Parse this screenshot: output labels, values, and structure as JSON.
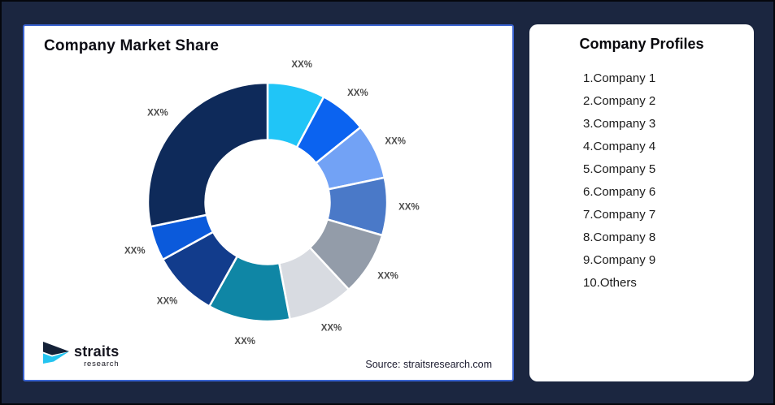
{
  "market_share_card": {
    "title": "Company Market Share",
    "source": "Source: straitsresearch.com",
    "logo": {
      "name": "straits",
      "sub": "research"
    }
  },
  "profiles_card": {
    "title": "Company Profiles",
    "items": [
      "1.Company 1",
      "2.Company 2",
      "3.Company 3",
      "4.Company 4",
      "5.Company 5",
      "6.Company 6",
      "7.Company 7",
      "8.Company 8",
      "9.Company 9",
      "10.Others"
    ]
  },
  "chart_data": {
    "type": "pie",
    "donut": true,
    "title": "Company Market Share",
    "legend_position": "none",
    "start_angle_deg": 0,
    "direction": "clockwise",
    "inner_radius_ratio": 0.52,
    "label_color": "#4D4D4D",
    "gap_stroke_color": "#FFFFFF",
    "segments": [
      {
        "label": "XX%",
        "value": 7.8,
        "color": "#20C5F7"
      },
      {
        "label": "XX%",
        "value": 6.4,
        "color": "#0B63F0"
      },
      {
        "label": "XX%",
        "value": 7.5,
        "color": "#72A2F5"
      },
      {
        "label": "XX%",
        "value": 7.8,
        "color": "#4A79C8"
      },
      {
        "label": "XX%",
        "value": 8.6,
        "color": "#939CA9"
      },
      {
        "label": "XX%",
        "value": 8.9,
        "color": "#D8DBE1"
      },
      {
        "label": "XX%",
        "value": 11.1,
        "color": "#0F86A5"
      },
      {
        "label": "XX%",
        "value": 8.9,
        "color": "#123C8C"
      },
      {
        "label": "XX%",
        "value": 4.7,
        "color": "#0B5ADB"
      },
      {
        "label": "XX%",
        "value": 28.3,
        "color": "#0E2A5A"
      }
    ]
  },
  "colors": {
    "background": "#1B2640",
    "market_card_border": "#3A63D0",
    "logo_navy": "#152238",
    "logo_cyan": "#24C4F0"
  }
}
